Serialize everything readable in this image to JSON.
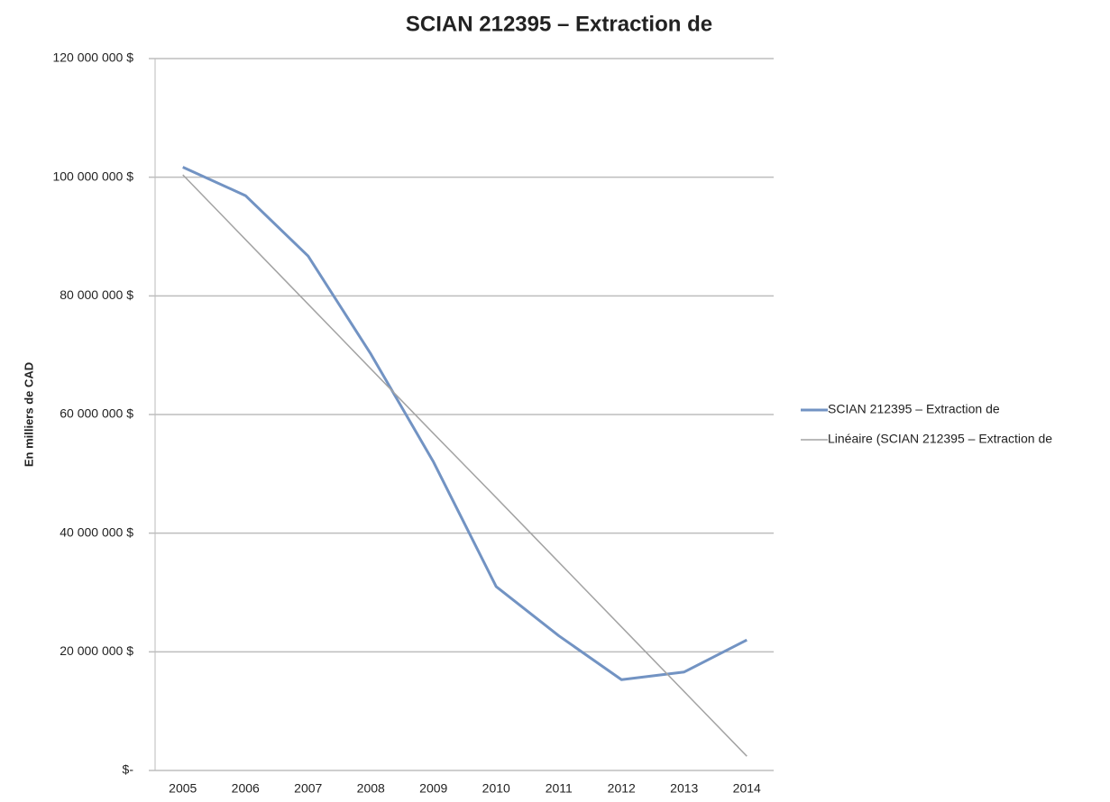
{
  "chart_data": {
    "type": "line",
    "title": "SCIAN 212395 – Extraction de",
    "y_label": "En milliers de CAD",
    "categories": [
      "2005",
      "2006",
      "2007",
      "2008",
      "2009",
      "2010",
      "2011",
      "2012",
      "2013",
      "2014"
    ],
    "series": [
      {
        "name": "SCIAN 212395 – Extraction de",
        "color": "#7293c3",
        "width": 3,
        "values": [
          101700000,
          96900000,
          86700000,
          70200000,
          52000000,
          31000000,
          22700000,
          15300000,
          16600000,
          22000000
        ]
      },
      {
        "name": "Linéaire (SCIAN 212395 – Extraction de",
        "color": "#a3a3a3",
        "width": 1.5,
        "values": [
          100400000,
          89500000,
          78600000,
          67700000,
          56800000,
          46000000,
          35100000,
          24200000,
          13300000,
          2400000
        ]
      }
    ],
    "ylim": [
      0,
      120000000
    ],
    "yticks": [
      {
        "value": 0,
        "label": "$-"
      },
      {
        "value": 20000000,
        "label": "20 000 000 $"
      },
      {
        "value": 40000000,
        "label": "40 000 000 $"
      },
      {
        "value": 60000000,
        "label": "60 000 000 $"
      },
      {
        "value": 80000000,
        "label": "80 000 000 $"
      },
      {
        "value": 100000000,
        "label": "100 000 000 $"
      },
      {
        "value": 120000000,
        "label": "120 000 000 $"
      }
    ],
    "grid": true
  }
}
